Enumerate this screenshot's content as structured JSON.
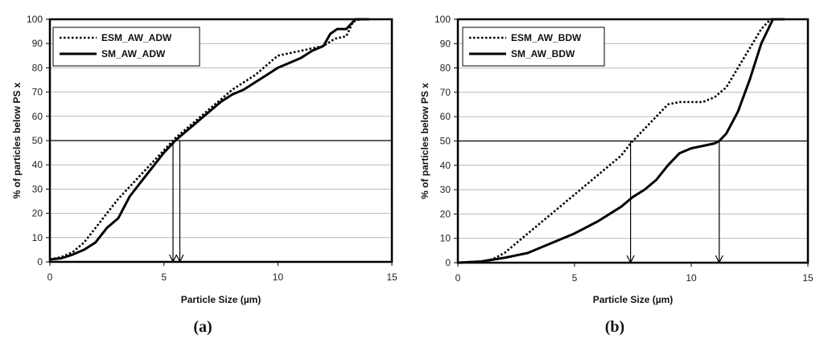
{
  "panels": [
    {
      "label": "(a)"
    },
    {
      "label": "(b)"
    }
  ],
  "chart_data": [
    {
      "type": "line",
      "xlabel": "Particle Size (µm)",
      "ylabel": "% of particles below PS x",
      "xlim": [
        0,
        15
      ],
      "ylim": [
        0,
        100
      ],
      "xticks": [
        0,
        5,
        10,
        15
      ],
      "yticks": [
        0,
        10,
        20,
        30,
        40,
        50,
        60,
        70,
        80,
        90,
        100
      ],
      "grid": true,
      "legend": "top-left",
      "reference_line_y": 50,
      "arrows_x": [
        5.4,
        5.7
      ],
      "series": [
        {
          "name": "ESM_AW_ADW",
          "style": "dotted",
          "x": [
            0,
            0.5,
            1.0,
            1.5,
            2.0,
            2.5,
            3.0,
            3.5,
            4.0,
            4.5,
            5.0,
            5.5,
            6.0,
            6.5,
            7.0,
            7.5,
            8.0,
            8.5,
            9.0,
            9.5,
            10.0,
            10.5,
            11.0,
            11.5,
            12.0,
            12.5,
            13.0,
            13.3,
            13.6,
            14.0
          ],
          "y": [
            1,
            2,
            4,
            8,
            14,
            20,
            26,
            31,
            36,
            41,
            46,
            51,
            55,
            59,
            63,
            67,
            71,
            74,
            77,
            81,
            85,
            86,
            87,
            88,
            89,
            92,
            93,
            99,
            100,
            100
          ]
        },
        {
          "name": "SM_AW_ADW",
          "style": "solid",
          "x": [
            0,
            0.5,
            1.0,
            1.5,
            2.0,
            2.5,
            3.0,
            3.5,
            4.0,
            4.5,
            5.0,
            5.5,
            6.0,
            6.5,
            7.0,
            7.5,
            8.0,
            8.5,
            9.0,
            9.5,
            10.0,
            10.5,
            11.0,
            11.5,
            12.0,
            12.3,
            12.6,
            13.0,
            13.4,
            14.0
          ],
          "y": [
            1,
            1.5,
            3,
            5,
            8,
            14,
            18,
            27,
            33,
            39,
            45,
            50,
            54,
            58,
            62,
            66,
            69,
            71,
            74,
            77,
            80,
            82,
            84,
            87,
            89,
            94,
            96,
            96,
            100,
            100
          ]
        }
      ]
    },
    {
      "type": "line",
      "xlabel": "Particle Size (µm)",
      "ylabel": "% of particles below PS x",
      "xlim": [
        0,
        15
      ],
      "ylim": [
        0,
        100
      ],
      "xticks": [
        0,
        5,
        10,
        15
      ],
      "yticks": [
        0,
        10,
        20,
        30,
        40,
        50,
        60,
        70,
        80,
        90,
        100
      ],
      "grid": true,
      "legend": "top-left",
      "reference_line_y": 50,
      "arrows_x": [
        7.4,
        11.2
      ],
      "series": [
        {
          "name": "ESM_AW_BDW",
          "style": "dotted",
          "x": [
            0,
            1.0,
            1.5,
            2.0,
            3.0,
            4.0,
            5.0,
            6.0,
            7.0,
            7.4,
            8.0,
            8.5,
            9.0,
            9.5,
            10.0,
            10.5,
            11.0,
            11.5,
            12.0,
            12.5,
            13.0,
            13.4,
            14.0
          ],
          "y": [
            0,
            0.5,
            1.5,
            4,
            12,
            20,
            28,
            36,
            44,
            49,
            55,
            60,
            65,
            66,
            66,
            66,
            68,
            72,
            80,
            88,
            96,
            100,
            100
          ]
        },
        {
          "name": "SM_AW_BDW",
          "style": "solid",
          "x": [
            0,
            1.0,
            2.0,
            3.0,
            3.5,
            4.0,
            5.0,
            6.0,
            7.0,
            7.5,
            8.0,
            8.5,
            9.0,
            9.5,
            10.0,
            10.5,
            11.0,
            11.2,
            11.5,
            12.0,
            12.5,
            13.0,
            13.5,
            14.0
          ],
          "y": [
            0,
            0.5,
            2,
            4,
            6,
            8,
            12,
            17,
            23,
            27,
            30,
            34,
            40,
            45,
            47,
            48,
            49,
            50,
            53,
            62,
            75,
            90,
            100,
            100
          ]
        }
      ]
    }
  ]
}
